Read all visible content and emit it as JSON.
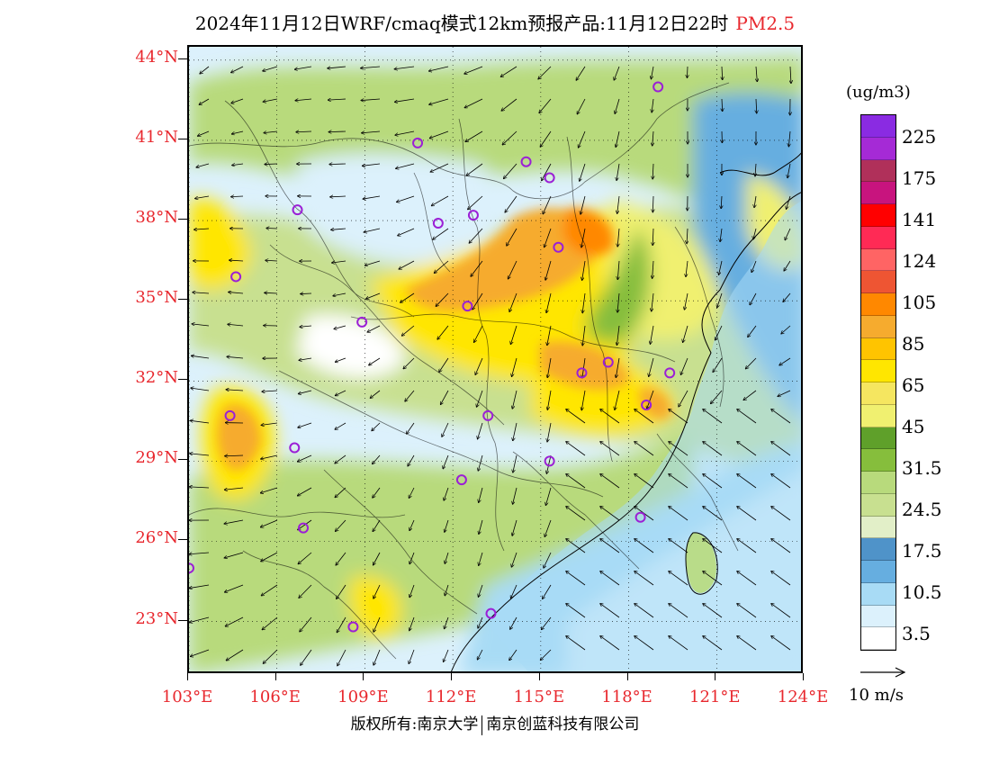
{
  "title": {
    "text": "2024年11月12日WRF/cmaq模式12km预报产品:11月12日22时",
    "pollutant": "PM2.5",
    "pollutant_color": "#e8282e"
  },
  "axes": {
    "latitude_labels": [
      "44°N",
      "41°N",
      "38°N",
      "35°N",
      "32°N",
      "29°N",
      "26°N",
      "23°N"
    ],
    "longitude_labels": [
      "103°E",
      "106°E",
      "109°E",
      "112°E",
      "115°E",
      "118°E",
      "121°E",
      "124°E"
    ],
    "label_color": "#e8282e"
  },
  "legend": {
    "unit": "(ug/m3)",
    "labels": [
      "225",
      "175",
      "141",
      "124",
      "105",
      "85",
      "65",
      "45",
      "31.5",
      "24.5",
      "17.5",
      "10.5",
      "3.5"
    ],
    "colors_top_to_bottom": [
      "#8a2be2",
      "#a52ad6",
      "#b0305a",
      "#c8147e",
      "#ff0000",
      "#ff2a55",
      "#ff6464",
      "#ee5533",
      "#ff8800",
      "#f6ab2e",
      "#ffc400",
      "#ffe600",
      "#f5e660",
      "#f0f070",
      "#5fa02a",
      "#86be3c",
      "#b8da7c",
      "#c8e090",
      "#e2efc8",
      "#4f93c9",
      "#66aee0",
      "#a8dbf5",
      "#dcf1fc",
      "#ffffff"
    ]
  },
  "wind_reference": {
    "label": "10 m/s"
  },
  "copyright": {
    "left": "版权所有:南京大学",
    "right": "南京创蓝科技有限公司"
  },
  "map_data": {
    "extent": {
      "lon_min": 103,
      "lon_max": 124,
      "lat_min": 21,
      "lat_max": 44.5
    },
    "cities": [
      {
        "lon": 119,
        "lat": 43.0
      },
      {
        "lon": 110.8,
        "lat": 40.9
      },
      {
        "lon": 114.5,
        "lat": 40.2
      },
      {
        "lon": 115.3,
        "lat": 39.6
      },
      {
        "lon": 106.7,
        "lat": 38.4
      },
      {
        "lon": 111.5,
        "lat": 37.9
      },
      {
        "lon": 112.7,
        "lat": 38.2
      },
      {
        "lon": 115.6,
        "lat": 37.0
      },
      {
        "lon": 104.6,
        "lat": 35.9
      },
      {
        "lon": 112.5,
        "lat": 34.8
      },
      {
        "lon": 108.9,
        "lat": 34.2
      },
      {
        "lon": 116.4,
        "lat": 32.3
      },
      {
        "lon": 117.3,
        "lat": 32.7
      },
      {
        "lon": 119.4,
        "lat": 32.3
      },
      {
        "lon": 104.4,
        "lat": 30.7
      },
      {
        "lon": 113.2,
        "lat": 30.7
      },
      {
        "lon": 118.6,
        "lat": 31.1
      },
      {
        "lon": 106.6,
        "lat": 29.5
      },
      {
        "lon": 115.3,
        "lat": 29.0
      },
      {
        "lon": 112.3,
        "lat": 28.3
      },
      {
        "lon": 106.9,
        "lat": 26.5
      },
      {
        "lon": 118.4,
        "lat": 26.9
      },
      {
        "lon": 103.0,
        "lat": 25.0
      },
      {
        "lon": 108.6,
        "lat": 22.8
      },
      {
        "lon": 113.3,
        "lat": 23.3
      }
    ]
  }
}
